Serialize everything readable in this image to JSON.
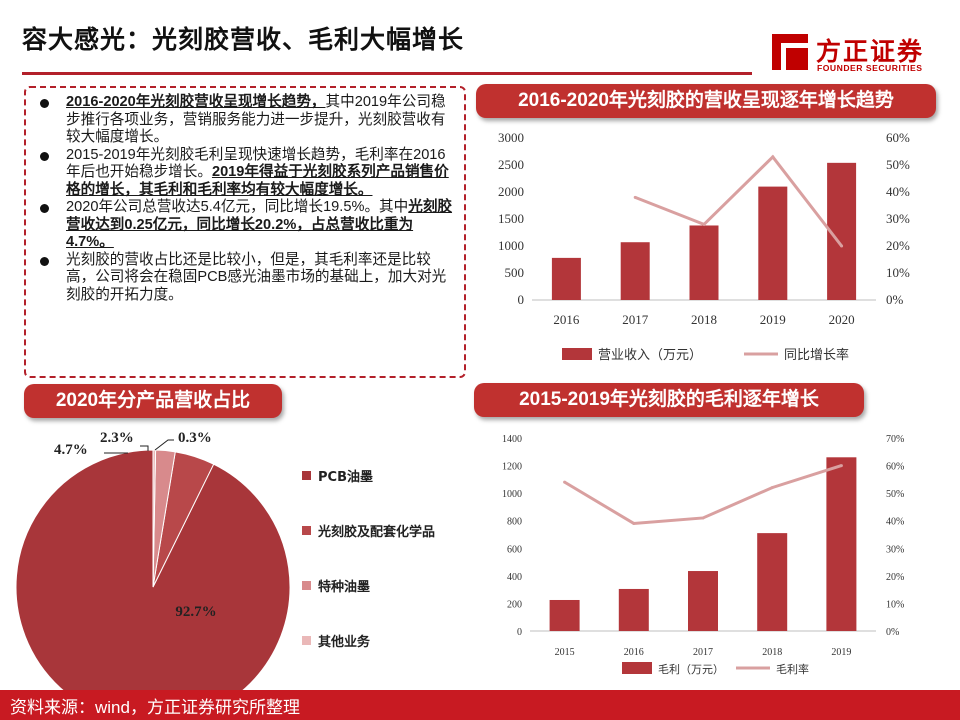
{
  "page": {
    "title": "容大感光：光刻胶营收、毛利大幅增长",
    "logo_cn": "方正证券",
    "logo_en": "FOUNDER SECURITIES",
    "footer": "资料来源：wind，方正证券研究所整理",
    "accent_color": "#b3202a"
  },
  "bullets": [
    {
      "bold": "2016-2020年光刻胶营收呈现增长趋势，",
      "text": "其中2019年公司稳步推行各项业务，营销服务能力进一步提升，光刻胶营收有较大幅度增长。",
      "bold_after": ""
    },
    {
      "bold": "",
      "text": "2015-2019年光刻胶毛利呈现快速增长趋势，毛利率在2016年后也开始稳步增长。",
      "bold_after": "2019年得益于光刻胶系列产品销售价格的增长，其毛利和毛利率均有较大幅度增长。"
    },
    {
      "bold": "",
      "text": "2020年公司总营收达5.4亿元，同比增长19.5%。其中",
      "bold_after": "光刻胶营收达到0.25亿元，同比增长20.2%，占总营收比重为4.7%。"
    },
    {
      "bold": "",
      "text": "光刻胶的营收占比还是比较小，但是，其毛利率还是比较高，公司将会在稳固PCB感光油墨市场的基础上，加大对光刻胶的开拓力度。",
      "bold_after": ""
    }
  ],
  "chart_data": [
    {
      "type": "bar",
      "title": "2016-2020年光刻胶的营收呈现逐年增长趋势",
      "categories": [
        "2016",
        "2017",
        "2018",
        "2019",
        "2020"
      ],
      "series": [
        {
          "name": "营业收入（万元）",
          "type": "bar",
          "axis": "left",
          "values": [
            780,
            1070,
            1380,
            2100,
            2540
          ],
          "color": "#b3363a"
        },
        {
          "name": "同比增长率",
          "type": "line",
          "axis": "right",
          "values": [
            null,
            0.38,
            0.28,
            0.53,
            0.2
          ],
          "color": "#d9a0a0"
        }
      ],
      "ylim": [
        0,
        3000
      ],
      "yticks": [
        "0",
        "500",
        "1000",
        "1500",
        "2000",
        "2500",
        "3000"
      ],
      "y2lim": [
        0,
        0.6
      ],
      "y2ticks": [
        "0%",
        "10%",
        "20%",
        "30%",
        "40%",
        "50%",
        "60%"
      ],
      "grid": false,
      "legend": "bottom"
    },
    {
      "type": "bar",
      "title": "2015-2019年光刻胶的毛利逐年增长",
      "categories": [
        "2015",
        "2016",
        "2017",
        "2018",
        "2019"
      ],
      "series": [
        {
          "name": "毛利（万元）",
          "type": "bar",
          "axis": "left",
          "values": [
            225,
            305,
            435,
            710,
            1260
          ],
          "color": "#b3363a"
        },
        {
          "name": "毛利率",
          "type": "line",
          "axis": "right",
          "values": [
            0.54,
            0.39,
            0.41,
            0.52,
            0.6
          ],
          "color": "#d9a0a0"
        }
      ],
      "ylim": [
        0,
        1400
      ],
      "yticks": [
        "0",
        "200",
        "400",
        "600",
        "800",
        "1000",
        "1200",
        "1400"
      ],
      "y2lim": [
        0,
        0.7
      ],
      "y2ticks": [
        "0%",
        "10%",
        "20%",
        "30%",
        "40%",
        "50%",
        "60%",
        "70%"
      ],
      "grid": false,
      "legend": "bottom"
    },
    {
      "type": "pie",
      "title": "2020年分产品营收占比",
      "slices": [
        {
          "label": "PCB油墨",
          "value": 92.7,
          "display": "92.7%",
          "color": "#a8363a"
        },
        {
          "label": "光刻胶及配套化学品",
          "value": 4.7,
          "display": "4.7%",
          "color": "#b8484a"
        },
        {
          "label": "特种油墨",
          "value": 2.3,
          "display": "2.3%",
          "color": "#d88a8c"
        },
        {
          "label": "其他业务",
          "value": 0.3,
          "display": "0.3%",
          "color": "#eab8b8"
        }
      ],
      "legend": "right"
    }
  ]
}
